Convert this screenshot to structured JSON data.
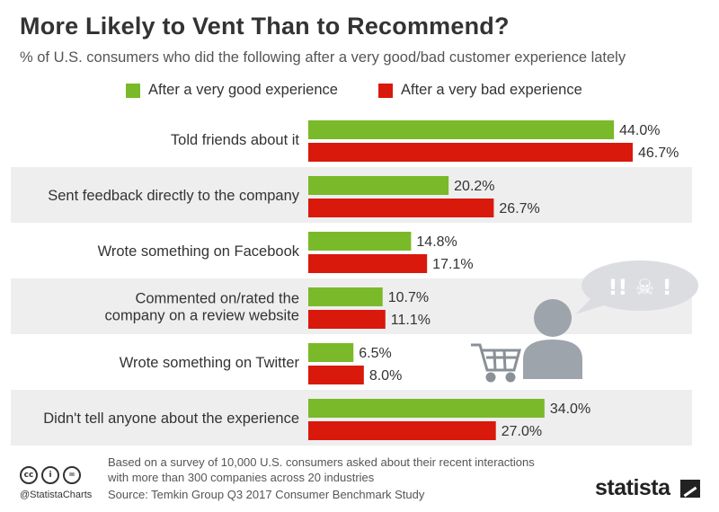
{
  "title": "More Likely to Vent Than to Recommend?",
  "subtitle": "% of U.S. consumers who did the following after a very good/bad customer experience lately",
  "colors": {
    "good": "#7ab929",
    "bad": "#d8190c",
    "stripe": "#eeeeee",
    "figure": "#9ea4ab"
  },
  "chart_data": {
    "type": "bar",
    "orientation": "horizontal",
    "categories": [
      [
        "Told friends about it"
      ],
      [
        "Sent feedback directly to the company"
      ],
      [
        "Wrote something on Facebook"
      ],
      [
        "Commented on/rated the",
        "company on a review website"
      ],
      [
        "Wrote something on Twitter"
      ],
      [
        "Didn't tell anyone about the experience"
      ]
    ],
    "series": [
      {
        "name": "After a very good experience",
        "values": [
          44.0,
          20.2,
          14.8,
          10.7,
          6.5,
          34.0
        ],
        "labels": [
          "44.0%",
          "20.2%",
          "14.8%",
          "10.7%",
          "6.5%",
          "34.0%"
        ]
      },
      {
        "name": "After a very bad experience",
        "values": [
          46.7,
          26.7,
          17.1,
          11.1,
          8.0,
          27.0
        ],
        "labels": [
          "46.7%",
          "26.7%",
          "17.1%",
          "11.1%",
          "8.0%",
          "27.0%"
        ]
      }
    ],
    "xlim": [
      0,
      46.7
    ],
    "grid": false,
    "legend": "top"
  },
  "footer": {
    "note": "Based on a survey of 10,000 U.S. consumers asked about their recent interactions with more than 300 companies across 20 industries",
    "source": "Source: Temkin Group Q3 2017 Consumer Benchmark Study",
    "handle": "@StatistaCharts",
    "brand": "statista",
    "cc": [
      "cc",
      "i",
      "="
    ]
  },
  "illustration": {
    "speech": "!! ☠ !"
  }
}
